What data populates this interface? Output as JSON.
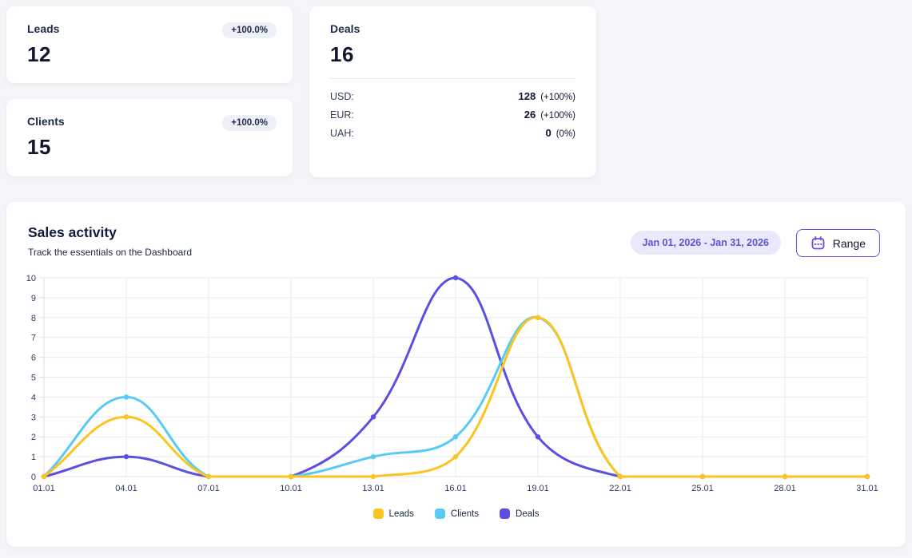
{
  "cards": {
    "leads": {
      "title": "Leads",
      "value": "12",
      "badge": "+100.0%"
    },
    "clients": {
      "title": "Clients",
      "value": "15",
      "badge": "+100.0%"
    },
    "deals": {
      "title": "Deals",
      "value": "16",
      "rows": [
        {
          "label": "USD:",
          "value": "128",
          "pct": "(+100%)"
        },
        {
          "label": "EUR:",
          "value": "26",
          "pct": "(+100%)"
        },
        {
          "label": "UAH:",
          "value": "0",
          "pct": "(0%)"
        }
      ]
    }
  },
  "sales": {
    "title": "Sales activity",
    "subtitle": "Track the essentials on the Dashboard",
    "date_range": "Jan 01, 2026 - Jan 31, 2026",
    "range_button": "Range"
  },
  "colors": {
    "accent": "#6152e2",
    "chip_bg": "#eae9fb",
    "chip_text": "#5a53d9",
    "grid": "#e9ebf0",
    "axis": "#dcdfe6"
  },
  "chart_data": {
    "type": "line",
    "title": "Sales activity",
    "x": [
      "01.01",
      "04.01",
      "07.01",
      "10.01",
      "13.01",
      "16.01",
      "19.01",
      "22.01",
      "25.01",
      "28.01",
      "31.01"
    ],
    "series": [
      {
        "name": "Leads",
        "color": "#fdc41f",
        "values": [
          0,
          3,
          0,
          0,
          0,
          1,
          8,
          0,
          0,
          0,
          0
        ]
      },
      {
        "name": "Clients",
        "color": "#59c9f5",
        "values": [
          0,
          4,
          0,
          0,
          1,
          2,
          8,
          0,
          0,
          0,
          0
        ]
      },
      {
        "name": "Deals",
        "color": "#5a4fe0",
        "values": [
          0,
          1,
          0,
          0,
          3,
          10,
          2,
          0,
          0,
          0,
          0
        ]
      }
    ],
    "xlabel": "",
    "ylabel": "",
    "ylim": [
      0,
      10
    ],
    "y_ticks": [
      0,
      1,
      2,
      3,
      4,
      5,
      6,
      7,
      8,
      9,
      10
    ],
    "grid": true,
    "legend_position": "bottom"
  }
}
